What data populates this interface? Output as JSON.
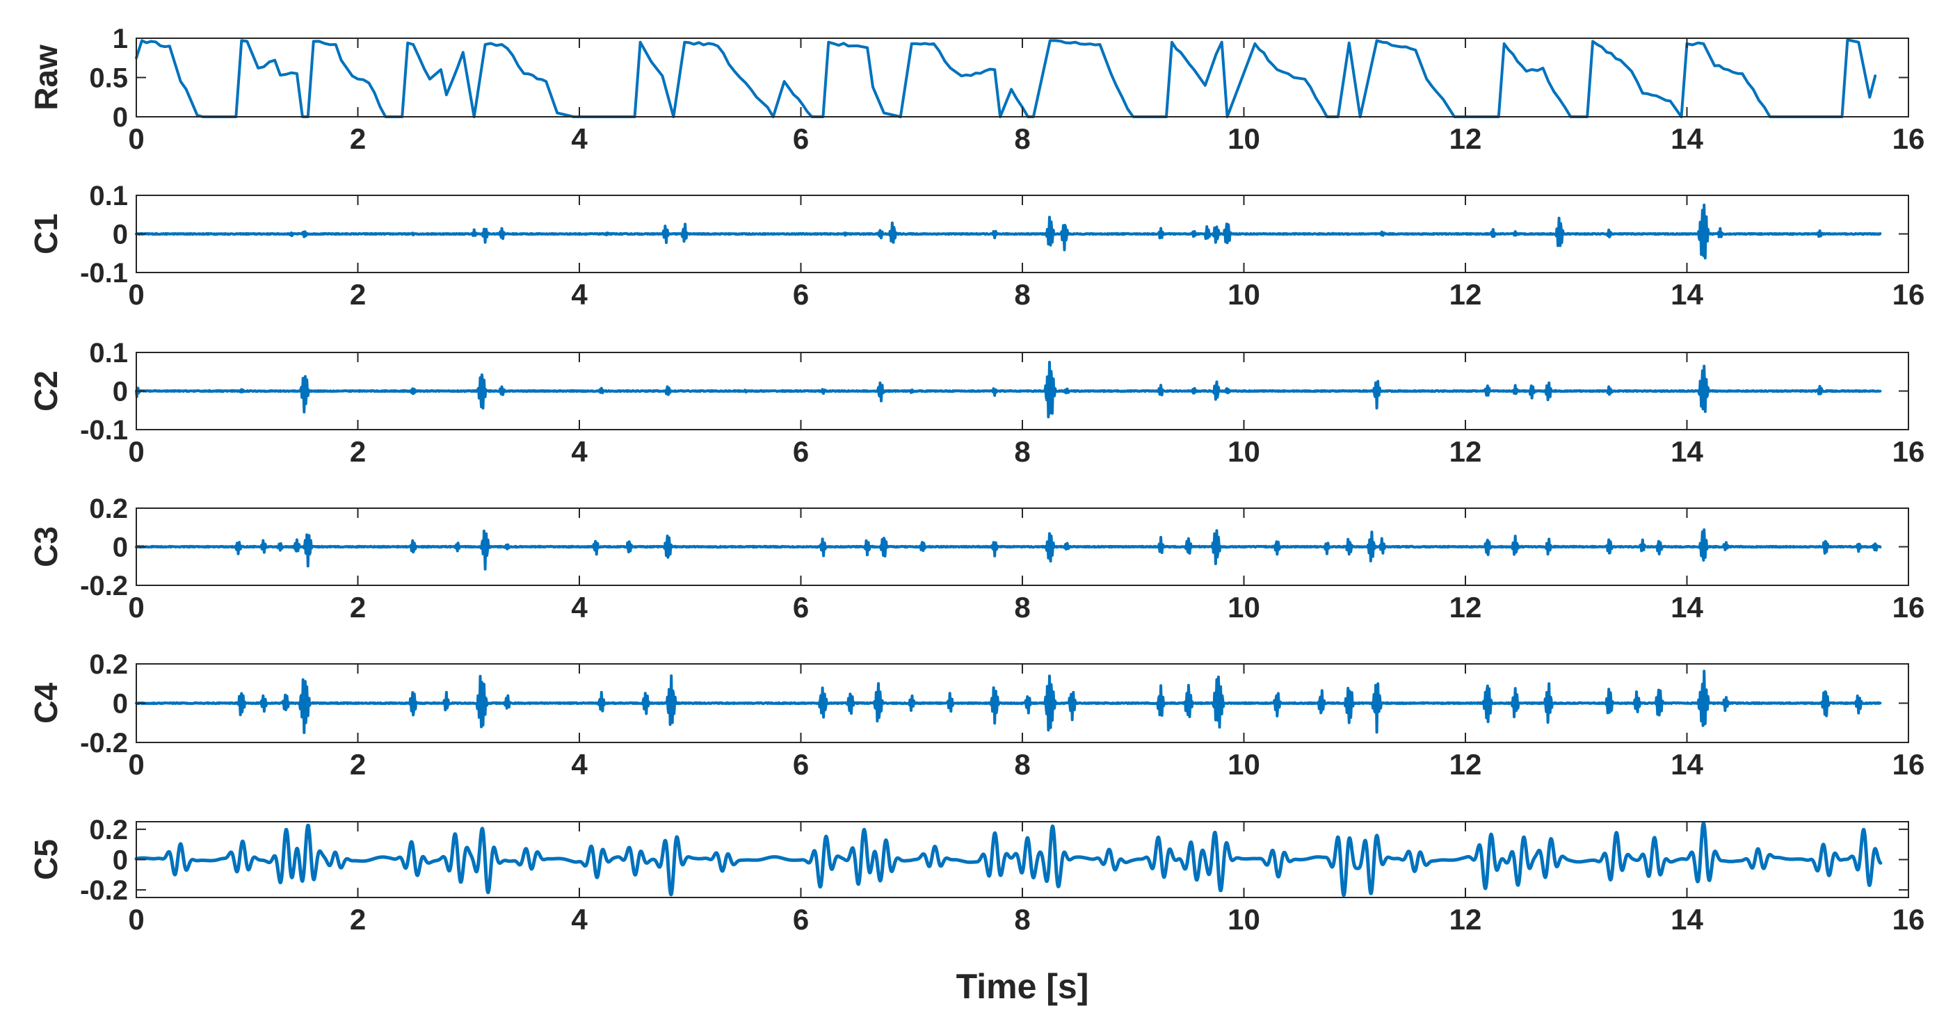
{
  "chart_data": [
    {
      "type": "line",
      "ylabel": "Raw",
      "xlabel": "",
      "xlim": [
        0,
        16
      ],
      "ylim": [
        0,
        1
      ],
      "xticks": [
        0,
        2,
        4,
        6,
        8,
        10,
        12,
        14,
        16
      ],
      "yticks": [
        0,
        0.5,
        1
      ],
      "ytick_labels": [
        "0",
        "0.5",
        "1"
      ],
      "grid": false,
      "color": "#0072BD",
      "x": [
        0,
        0.05,
        0.3,
        0.4,
        0.45,
        0.55,
        0.6,
        0.9,
        0.95,
        1.0,
        1.1,
        1.25,
        1.3,
        1.45,
        1.5,
        1.55,
        1.6,
        1.8,
        1.85,
        1.95,
        2.1,
        2.25,
        2.35,
        2.4,
        2.45,
        2.5,
        2.65,
        2.75,
        2.8,
        2.95,
        3.05,
        3.15,
        3.3,
        3.35,
        3.5,
        3.7,
        3.8,
        3.95,
        4.05,
        4.1,
        4.2,
        4.5,
        4.55,
        4.65,
        4.75,
        4.85,
        4.95,
        5.25,
        5.4,
        5.45,
        5.6,
        5.7,
        5.75,
        5.85,
        6.1,
        6.2,
        6.25,
        6.3,
        6.6,
        6.65,
        6.75,
        6.9,
        7.0,
        7.2,
        7.35,
        7.45,
        7.75,
        7.8,
        7.9,
        8.05,
        8.1,
        8.25,
        8.3,
        8.7,
        8.8,
        8.95,
        9.0,
        9.2,
        9.3,
        9.35,
        9.55,
        9.65,
        9.75,
        9.8,
        9.85,
        10.1,
        10.3,
        10.45,
        10.55,
        10.75,
        10.85,
        10.95,
        11.05,
        11.2,
        11.25,
        11.55,
        11.65,
        11.8,
        11.9,
        11.95,
        12.3,
        12.35,
        12.55,
        12.7,
        12.75,
        12.95,
        13.1,
        13.15,
        13.4,
        13.5,
        13.55,
        13.6,
        13.85,
        13.95,
        14.0,
        14.15,
        14.25,
        14.5,
        14.7,
        14.75,
        15.0,
        15.1,
        15.4,
        15.45,
        15.55,
        15.65,
        15.7
      ],
      "y": [
        0.75,
        0.97,
        0.9,
        0.45,
        0.35,
        0.02,
        0.0,
        0.0,
        0.97,
        0.96,
        0.62,
        0.72,
        0.53,
        0.55,
        0.0,
        0.0,
        0.96,
        0.92,
        0.72,
        0.52,
        0.43,
        0.0,
        0.0,
        0.0,
        0.94,
        0.92,
        0.48,
        0.6,
        0.28,
        0.82,
        0.0,
        0.92,
        0.92,
        0.87,
        0.55,
        0.45,
        0.05,
        0.0,
        0.0,
        0.0,
        0.0,
        0.0,
        0.95,
        0.7,
        0.52,
        0.0,
        0.95,
        0.9,
        0.58,
        0.5,
        0.25,
        0.12,
        0.0,
        0.45,
        0.0,
        0.0,
        0.95,
        0.93,
        0.88,
        0.38,
        0.05,
        0.0,
        0.93,
        0.93,
        0.62,
        0.52,
        0.6,
        0.0,
        0.35,
        0.0,
        0.0,
        0.97,
        0.97,
        0.92,
        0.55,
        0.1,
        0.0,
        0.0,
        0.0,
        0.95,
        0.6,
        0.4,
        0.8,
        0.95,
        0.0,
        0.93,
        0.6,
        0.5,
        0.48,
        0.0,
        0.0,
        0.94,
        0.0,
        0.97,
        0.95,
        0.85,
        0.48,
        0.22,
        0.0,
        0.0,
        0.0,
        0.93,
        0.58,
        0.62,
        0.45,
        0.0,
        0.0,
        0.96,
        0.72,
        0.58,
        0.45,
        0.3,
        0.2,
        0.0,
        0.93,
        0.93,
        0.65,
        0.55,
        0.12,
        0.0,
        0.0,
        0.0,
        0.0,
        0.98,
        0.95,
        0.25,
        0.52
      ]
    },
    {
      "type": "line",
      "ylabel": "C1",
      "xlabel": "",
      "xlim": [
        0,
        16
      ],
      "ylim": [
        -0.1,
        0.1
      ],
      "xticks": [
        0,
        2,
        4,
        6,
        8,
        10,
        12,
        14,
        16
      ],
      "yticks": [
        -0.1,
        0,
        0.1
      ],
      "ytick_labels": [
        "-0.1",
        "0",
        "0.1"
      ],
      "grid": false,
      "color": "#0072BD",
      "x_end": 15.75,
      "baseline": 0,
      "spikes": [
        [
          1.4,
          0.006
        ],
        [
          1.52,
          0.012
        ],
        [
          2.5,
          0.004
        ],
        [
          3.05,
          0.012
        ],
        [
          3.15,
          0.025
        ],
        [
          3.3,
          0.02
        ],
        [
          4.25,
          0.004
        ],
        [
          4.78,
          0.03
        ],
        [
          4.95,
          0.03
        ],
        [
          6.4,
          0.004
        ],
        [
          6.72,
          0.015
        ],
        [
          6.83,
          0.04
        ],
        [
          7.75,
          0.012
        ],
        [
          8.25,
          0.06
        ],
        [
          8.38,
          0.045
        ],
        [
          9.25,
          0.02
        ],
        [
          9.55,
          0.012
        ],
        [
          9.67,
          0.025
        ],
        [
          9.75,
          0.035
        ],
        [
          9.85,
          0.045
        ],
        [
          11.25,
          0.008
        ],
        [
          12.25,
          0.015
        ],
        [
          12.45,
          0.008
        ],
        [
          12.85,
          0.055
        ],
        [
          13.3,
          0.015
        ],
        [
          14.15,
          0.1
        ],
        [
          14.3,
          0.015
        ],
        [
          15.2,
          0.012
        ]
      ]
    },
    {
      "type": "line",
      "ylabel": "C2",
      "xlabel": "",
      "xlim": [
        0,
        16
      ],
      "ylim": [
        -0.1,
        0.1
      ],
      "xticks": [
        0,
        2,
        4,
        6,
        8,
        10,
        12,
        14,
        16
      ],
      "yticks": [
        -0.1,
        0,
        0.1
      ],
      "ytick_labels": [
        "-0.1",
        "0",
        "0.1"
      ],
      "grid": false,
      "color": "#0072BD",
      "x_end": 15.75,
      "baseline": 0,
      "spikes": [
        [
          0.0,
          0.025
        ],
        [
          0.95,
          0.006
        ],
        [
          1.52,
          0.065
        ],
        [
          2.5,
          0.012
        ],
        [
          3.12,
          0.065
        ],
        [
          3.3,
          0.018
        ],
        [
          4.2,
          0.01
        ],
        [
          4.8,
          0.02
        ],
        [
          5.5,
          0.004
        ],
        [
          6.2,
          0.008
        ],
        [
          6.72,
          0.035
        ],
        [
          7.0,
          0.006
        ],
        [
          7.75,
          0.012
        ],
        [
          8.25,
          0.1
        ],
        [
          8.4,
          0.01
        ],
        [
          9.25,
          0.02
        ],
        [
          9.55,
          0.012
        ],
        [
          9.75,
          0.035
        ],
        [
          9.85,
          0.01
        ],
        [
          11.2,
          0.045
        ],
        [
          12.2,
          0.02
        ],
        [
          12.45,
          0.015
        ],
        [
          12.6,
          0.025
        ],
        [
          12.75,
          0.035
        ],
        [
          13.3,
          0.015
        ],
        [
          14.15,
          0.085
        ],
        [
          15.2,
          0.018
        ]
      ]
    },
    {
      "type": "line",
      "ylabel": "C3",
      "xlabel": "",
      "xlim": [
        0,
        16
      ],
      "ylim": [
        -0.2,
        0.2
      ],
      "xticks": [
        0,
        2,
        4,
        6,
        8,
        10,
        12,
        14,
        16
      ],
      "yticks": [
        -0.2,
        0,
        0.2
      ],
      "ytick_labels": [
        "-0.2",
        "0",
        "0.2"
      ],
      "grid": false,
      "color": "#0072BD",
      "x_end": 15.75,
      "baseline": 0,
      "spikes": [
        [
          0.92,
          0.05
        ],
        [
          1.15,
          0.04
        ],
        [
          1.3,
          0.03
        ],
        [
          1.45,
          0.05
        ],
        [
          1.55,
          0.12
        ],
        [
          2.5,
          0.05
        ],
        [
          2.9,
          0.03
        ],
        [
          3.15,
          0.12
        ],
        [
          3.35,
          0.02
        ],
        [
          4.15,
          0.05
        ],
        [
          4.45,
          0.05
        ],
        [
          4.8,
          0.1
        ],
        [
          6.2,
          0.06
        ],
        [
          6.6,
          0.05
        ],
        [
          6.75,
          0.08
        ],
        [
          7.1,
          0.04
        ],
        [
          7.75,
          0.05
        ],
        [
          8.25,
          0.12
        ],
        [
          8.4,
          0.03
        ],
        [
          9.25,
          0.05
        ],
        [
          9.5,
          0.06
        ],
        [
          9.75,
          0.12
        ],
        [
          10.3,
          0.05
        ],
        [
          10.75,
          0.04
        ],
        [
          10.95,
          0.06
        ],
        [
          11.15,
          0.1
        ],
        [
          11.25,
          0.05
        ],
        [
          12.2,
          0.06
        ],
        [
          12.45,
          0.07
        ],
        [
          12.75,
          0.05
        ],
        [
          13.3,
          0.06
        ],
        [
          13.6,
          0.04
        ],
        [
          13.75,
          0.05
        ],
        [
          14.15,
          0.12
        ],
        [
          14.35,
          0.03
        ],
        [
          15.25,
          0.05
        ],
        [
          15.55,
          0.03
        ],
        [
          15.7,
          0.03
        ]
      ]
    },
    {
      "type": "line",
      "ylabel": "C4",
      "xlabel": "",
      "xlim": [
        0,
        16
      ],
      "ylim": [
        -0.2,
        0.2
      ],
      "xticks": [
        0,
        2,
        4,
        6,
        8,
        10,
        12,
        14,
        16
      ],
      "yticks": [
        -0.2,
        0,
        0.2
      ],
      "ytick_labels": [
        "-0.2",
        "0",
        "0.2"
      ],
      "grid": false,
      "color": "#0072BD",
      "x_end": 15.75,
      "baseline": 0,
      "spikes": [
        [
          0.95,
          0.09
        ],
        [
          1.15,
          0.06
        ],
        [
          1.35,
          0.07
        ],
        [
          1.52,
          0.2
        ],
        [
          2.5,
          0.09
        ],
        [
          2.8,
          0.06
        ],
        [
          3.12,
          0.2
        ],
        [
          3.35,
          0.05
        ],
        [
          4.2,
          0.07
        ],
        [
          4.6,
          0.08
        ],
        [
          4.83,
          0.17
        ],
        [
          6.2,
          0.12
        ],
        [
          6.45,
          0.08
        ],
        [
          6.7,
          0.13
        ],
        [
          7.0,
          0.05
        ],
        [
          7.35,
          0.06
        ],
        [
          7.75,
          0.12
        ],
        [
          8.05,
          0.06
        ],
        [
          8.25,
          0.2
        ],
        [
          8.45,
          0.1
        ],
        [
          9.25,
          0.1
        ],
        [
          9.5,
          0.12
        ],
        [
          9.77,
          0.2
        ],
        [
          10.3,
          0.08
        ],
        [
          10.7,
          0.08
        ],
        [
          10.95,
          0.14
        ],
        [
          11.2,
          0.15
        ],
        [
          12.2,
          0.14
        ],
        [
          12.45,
          0.1
        ],
        [
          12.75,
          0.12
        ],
        [
          13.3,
          0.1
        ],
        [
          13.55,
          0.08
        ],
        [
          13.75,
          0.1
        ],
        [
          14.15,
          0.2
        ],
        [
          14.35,
          0.05
        ],
        [
          15.25,
          0.1
        ],
        [
          15.55,
          0.07
        ]
      ]
    },
    {
      "type": "line",
      "ylabel": "C5",
      "xlabel": "Time [s]",
      "xlim": [
        0,
        16
      ],
      "ylim": [
        -0.25,
        0.25
      ],
      "xticks": [
        0,
        2,
        4,
        6,
        8,
        10,
        12,
        14,
        16
      ],
      "yticks": [
        -0.2,
        0,
        0.2
      ],
      "ytick_labels": [
        "-0.2",
        "0",
        "0.2"
      ],
      "grid": false,
      "color": "#0072BD",
      "x_end": 15.75,
      "baseline": 0,
      "bursts": [
        [
          0.38,
          0.12
        ],
        [
          0.95,
          0.12
        ],
        [
          1.35,
          0.2
        ],
        [
          1.55,
          0.22
        ],
        [
          1.8,
          0.06
        ],
        [
          2.5,
          0.12
        ],
        [
          2.9,
          0.18
        ],
        [
          3.15,
          0.23
        ],
        [
          3.55,
          0.08
        ],
        [
          4.15,
          0.12
        ],
        [
          4.5,
          0.1
        ],
        [
          4.83,
          0.22
        ],
        [
          5.3,
          0.07
        ],
        [
          6.2,
          0.18
        ],
        [
          6.55,
          0.2
        ],
        [
          6.75,
          0.15
        ],
        [
          7.2,
          0.08
        ],
        [
          7.75,
          0.17
        ],
        [
          8.05,
          0.15
        ],
        [
          8.28,
          0.23
        ],
        [
          8.8,
          0.07
        ],
        [
          9.25,
          0.15
        ],
        [
          9.55,
          0.14
        ],
        [
          9.77,
          0.22
        ],
        [
          10.3,
          0.1
        ],
        [
          10.9,
          0.23
        ],
        [
          11.15,
          0.22
        ],
        [
          11.55,
          0.08
        ],
        [
          12.2,
          0.2
        ],
        [
          12.5,
          0.17
        ],
        [
          12.75,
          0.14
        ],
        [
          13.35,
          0.17
        ],
        [
          13.7,
          0.15
        ],
        [
          14.15,
          0.23
        ],
        [
          14.65,
          0.08
        ],
        [
          15.25,
          0.12
        ],
        [
          15.62,
          0.2
        ]
      ]
    }
  ]
}
